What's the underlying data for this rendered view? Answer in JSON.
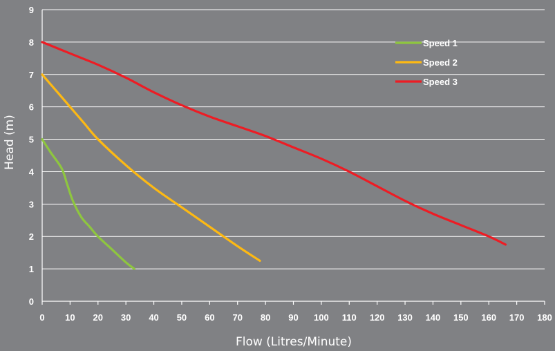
{
  "chart_data": {
    "type": "line",
    "xlabel": "Flow (Litres/Minute)",
    "ylabel": "Head (m)",
    "xlim": [
      0,
      180
    ],
    "ylim": [
      0,
      9
    ],
    "xticks": [
      "0",
      "10",
      "20",
      "30",
      "40",
      "50",
      "60",
      "70",
      "80",
      "90",
      "100",
      "110",
      "120",
      "130",
      "140",
      "150",
      "160",
      "170",
      "180"
    ],
    "yticks": [
      "0",
      "1",
      "2",
      "3",
      "4",
      "5",
      "6",
      "7",
      "8",
      "9"
    ],
    "grid": "horizontal",
    "legend_position": "top-right",
    "series": [
      {
        "name": "Speed 1",
        "color": "#8ec63f",
        "points": [
          [
            0,
            5
          ],
          [
            3,
            4.6
          ],
          [
            7,
            4.1
          ],
          [
            9,
            3.6
          ],
          [
            11,
            3.1
          ],
          [
            14,
            2.6
          ],
          [
            17,
            2.3
          ],
          [
            20,
            2.0
          ],
          [
            25,
            1.6
          ],
          [
            30,
            1.2
          ],
          [
            33,
            1.0
          ]
        ]
      },
      {
        "name": "Speed 2",
        "color": "#fdb913",
        "points": [
          [
            0,
            7
          ],
          [
            5,
            6.5
          ],
          [
            10,
            6.0
          ],
          [
            15,
            5.5
          ],
          [
            20,
            5.0
          ],
          [
            30,
            4.2
          ],
          [
            40,
            3.5
          ],
          [
            50,
            2.9
          ],
          [
            60,
            2.3
          ],
          [
            70,
            1.7
          ],
          [
            78,
            1.25
          ]
        ]
      },
      {
        "name": "Speed 3",
        "color": "#ed1c24",
        "points": [
          [
            0,
            8
          ],
          [
            10,
            7.65
          ],
          [
            20,
            7.3
          ],
          [
            30,
            6.9
          ],
          [
            40,
            6.45
          ],
          [
            50,
            6.05
          ],
          [
            60,
            5.7
          ],
          [
            70,
            5.4
          ],
          [
            80,
            5.1
          ],
          [
            90,
            4.75
          ],
          [
            100,
            4.4
          ],
          [
            110,
            4.0
          ],
          [
            120,
            3.55
          ],
          [
            130,
            3.1
          ],
          [
            140,
            2.7
          ],
          [
            150,
            2.35
          ],
          [
            160,
            2.0
          ],
          [
            166,
            1.75
          ]
        ]
      }
    ]
  }
}
